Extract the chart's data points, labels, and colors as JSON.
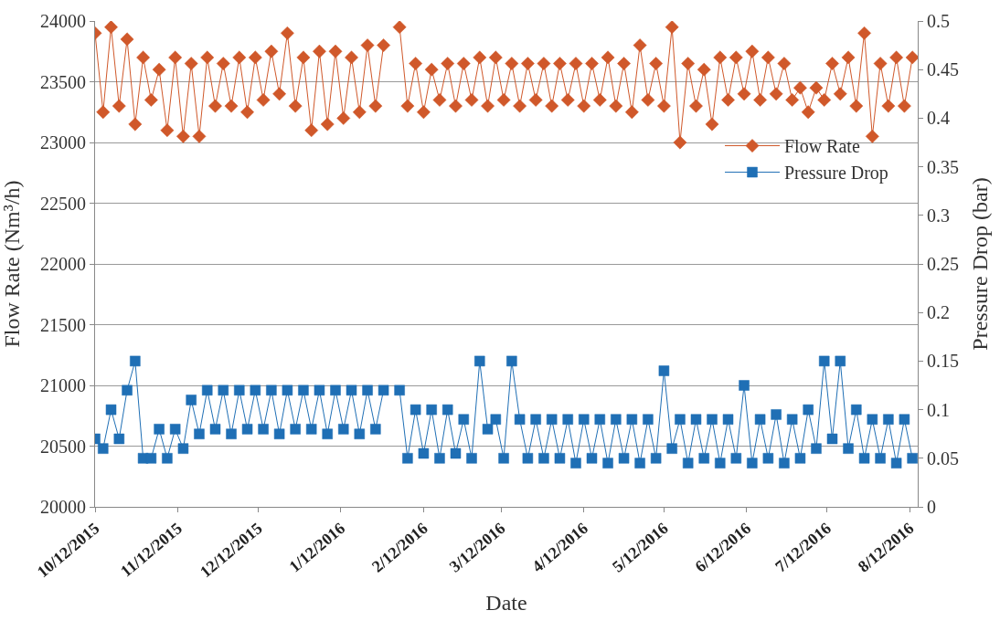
{
  "chart_data": {
    "type": "line",
    "xlabel": "Date",
    "ylabel": "Flow Rate (Nm³/h)",
    "y2label": "Pressure Drop (bar)",
    "x": [
      "2015-10-12",
      "2015-10-15",
      "2015-10-18",
      "2015-10-21",
      "2015-10-24",
      "2015-10-27",
      "2015-10-30",
      "2015-11-02",
      "2015-11-05",
      "2015-11-08",
      "2015-11-11",
      "2015-11-14",
      "2015-11-17",
      "2015-11-20",
      "2015-11-23",
      "2015-11-26",
      "2015-11-29",
      "2015-12-02",
      "2015-12-05",
      "2015-12-08",
      "2015-12-11",
      "2015-12-14",
      "2015-12-17",
      "2015-12-20",
      "2015-12-23",
      "2015-12-26",
      "2015-12-29",
      "2016-01-01",
      "2016-01-04",
      "2016-01-07",
      "2016-01-10",
      "2016-01-13",
      "2016-01-16",
      "2016-01-19",
      "2016-01-22",
      "2016-01-25",
      "2016-01-28",
      "2016-01-31",
      "2016-02-03",
      "2016-02-06",
      "2016-02-09",
      "2016-02-12",
      "2016-02-15",
      "2016-02-18",
      "2016-02-21",
      "2016-02-24",
      "2016-02-27",
      "2016-03-01",
      "2016-03-04",
      "2016-03-07",
      "2016-03-10",
      "2016-03-13",
      "2016-03-16",
      "2016-03-19",
      "2016-03-22",
      "2016-03-25",
      "2016-03-28",
      "2016-03-31",
      "2016-04-03",
      "2016-04-06",
      "2016-04-09",
      "2016-04-12",
      "2016-04-15",
      "2016-04-18",
      "2016-04-21",
      "2016-04-24",
      "2016-04-27",
      "2016-04-30",
      "2016-05-03",
      "2016-05-06",
      "2016-05-09",
      "2016-05-12",
      "2016-05-15",
      "2016-05-18",
      "2016-05-21",
      "2016-05-24",
      "2016-05-27",
      "2016-05-30",
      "2016-06-02",
      "2016-06-05",
      "2016-06-08",
      "2016-06-11",
      "2016-06-14",
      "2016-06-17",
      "2016-06-20",
      "2016-06-23",
      "2016-06-26",
      "2016-06-29",
      "2016-07-02",
      "2016-07-05",
      "2016-07-08",
      "2016-07-11",
      "2016-07-14",
      "2016-07-17",
      "2016-07-20",
      "2016-07-23",
      "2016-07-26",
      "2016-07-29",
      "2016-08-01",
      "2016-08-04",
      "2016-08-07",
      "2016-08-10",
      "2016-08-13"
    ],
    "series": [
      {
        "name": "Flow Rate",
        "color": "#d0582a",
        "marker": "diamond",
        "values": [
          23900,
          23250,
          23950,
          23300,
          23850,
          23150,
          23700,
          23350,
          23600,
          23100,
          23700,
          23050,
          23650,
          23050,
          23700,
          23300,
          23650,
          23300,
          23700,
          23250,
          23700,
          23350,
          23750,
          23400,
          23900,
          23300,
          23700,
          23100,
          23750,
          23150,
          23750,
          23200,
          23700,
          23250,
          23800,
          23300,
          23800,
          null,
          23950,
          23300,
          23650,
          23250,
          23600,
          23350,
          23650,
          23300,
          23650,
          23350,
          23700,
          23300,
          23700,
          23350,
          23650,
          23300,
          23650,
          23350,
          23650,
          23300,
          23650,
          23350,
          23650,
          23300,
          23650,
          23350,
          23700,
          23300,
          23650,
          23250,
          23800,
          23350,
          23650,
          23300,
          23950,
          23000,
          23650,
          23300,
          23600,
          23150,
          23700,
          23350,
          23700,
          23400,
          23750,
          23350,
          23700,
          23400,
          23650,
          23350,
          23450,
          23250,
          23450,
          23350,
          23650,
          23400,
          23700,
          23300,
          23900,
          23050,
          23650,
          23300,
          23700,
          23300,
          23700
        ]
      },
      {
        "name": "Pressure Drop",
        "color": "#1f6fb5",
        "marker": "square",
        "axis": "y2",
        "values": [
          0.07,
          0.06,
          0.1,
          0.07,
          0.12,
          0.15,
          0.05,
          0.05,
          0.08,
          0.05,
          0.08,
          0.06,
          0.11,
          0.075,
          0.12,
          0.08,
          0.12,
          0.075,
          0.12,
          0.08,
          0.12,
          0.08,
          0.12,
          0.075,
          0.12,
          0.08,
          0.12,
          0.08,
          0.12,
          0.075,
          0.12,
          0.08,
          0.12,
          0.075,
          0.12,
          0.08,
          0.12,
          null,
          0.12,
          0.05,
          0.1,
          0.055,
          0.1,
          0.05,
          0.1,
          0.055,
          0.09,
          0.05,
          0.15,
          0.08,
          0.09,
          0.05,
          0.15,
          0.09,
          0.05,
          0.09,
          0.05,
          0.09,
          0.05,
          0.09,
          0.045,
          0.09,
          0.05,
          0.09,
          0.045,
          0.09,
          0.05,
          0.09,
          0.045,
          0.09,
          0.05,
          0.14,
          0.06,
          0.09,
          0.045,
          0.09,
          0.05,
          0.09,
          0.045,
          0.09,
          0.05,
          0.125,
          0.045,
          0.09,
          0.05,
          0.095,
          0.045,
          0.09,
          0.05,
          0.1,
          0.06,
          0.15,
          0.07,
          0.15,
          0.06,
          0.1,
          0.05,
          0.09,
          0.05,
          0.09,
          0.045,
          0.09,
          0.05
        ]
      }
    ],
    "xlim": [
      "2015-10-12",
      "2016-08-15"
    ],
    "xticks": [
      {
        "value": "2015-10-12",
        "label": "10/12/2015"
      },
      {
        "value": "2015-11-12",
        "label": "11/12/2015"
      },
      {
        "value": "2015-12-12",
        "label": "12/12/2015"
      },
      {
        "value": "2016-01-12",
        "label": "1/12/2016"
      },
      {
        "value": "2016-02-12",
        "label": "2/12/2016"
      },
      {
        "value": "2016-03-12",
        "label": "3/12/2016"
      },
      {
        "value": "2016-04-12",
        "label": "4/12/2016"
      },
      {
        "value": "2016-05-12",
        "label": "5/12/2016"
      },
      {
        "value": "2016-06-12",
        "label": "6/12/2016"
      },
      {
        "value": "2016-07-12",
        "label": "7/12/2016"
      },
      {
        "value": "2016-08-12",
        "label": "8/12/2016"
      }
    ],
    "ylim": [
      20000,
      24000
    ],
    "yticks": [
      20000,
      20500,
      21000,
      21500,
      22000,
      22500,
      23000,
      23500,
      24000
    ],
    "y2lim": [
      0,
      0.5
    ],
    "y2ticks": [
      0,
      0.05,
      0.1,
      0.15,
      0.2,
      0.25,
      0.3,
      0.35,
      0.4,
      0.45,
      0.5
    ],
    "grid": "y",
    "legend": "top right",
    "line_style": "solid"
  }
}
